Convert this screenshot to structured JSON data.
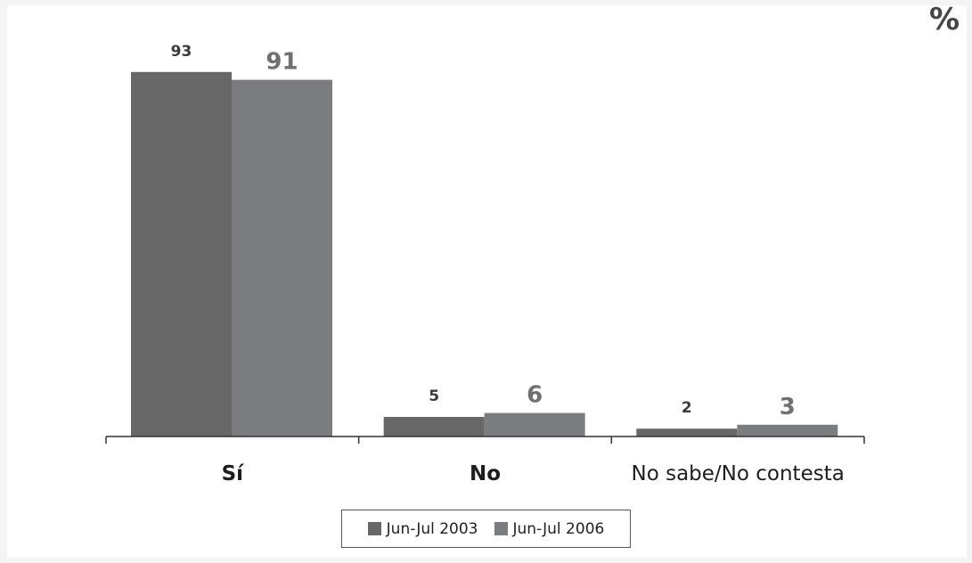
{
  "unit_label": "%",
  "colors": {
    "series1": "#676767",
    "series2": "#7b7c80",
    "axis": "#333333"
  },
  "chart_data": {
    "type": "bar",
    "categories": [
      "Sí",
      "No",
      "No sabe/No contesta"
    ],
    "series": [
      {
        "name": "Jun-Jul 2003",
        "values": [
          93,
          5,
          2
        ]
      },
      {
        "name": "Jun-Jul 2006",
        "values": [
          91,
          6,
          3
        ]
      }
    ],
    "ylim": [
      0,
      100
    ],
    "grid": false,
    "legend_position": "bottom"
  }
}
